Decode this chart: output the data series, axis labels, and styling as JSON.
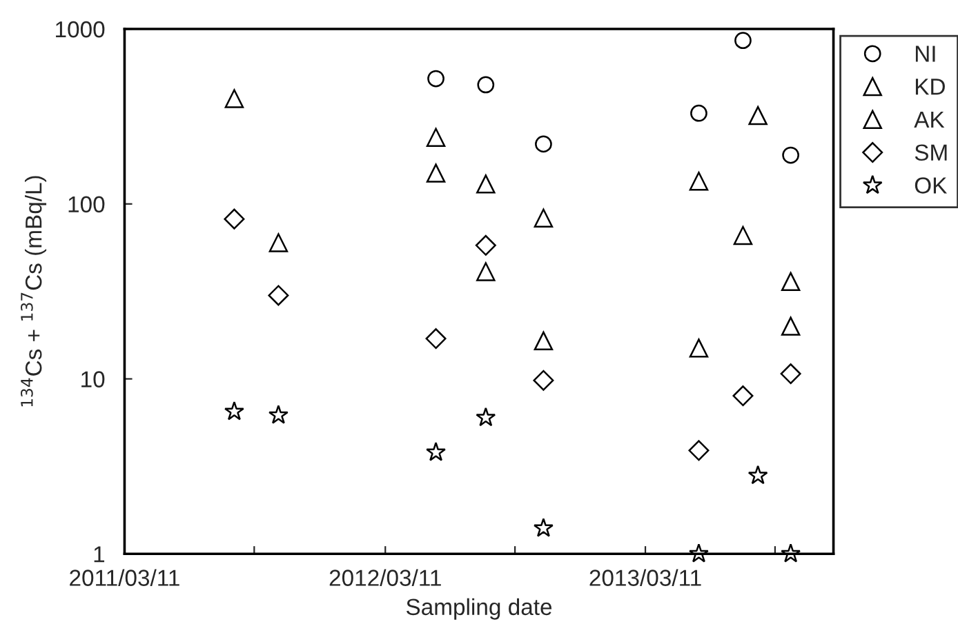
{
  "chart_data": {
    "type": "scatter",
    "xlabel": "Sampling date",
    "ylabel": "$^{134}$Cs + $^{137}$Cs (mBq/L)",
    "log": "y",
    "grid": false,
    "legend": "top right",
    "xlim": [
      "2011-03-11",
      "2013-11-30"
    ],
    "xticks": [
      {
        "value": "2011-03-11",
        "label": "2011/03/11"
      },
      {
        "value": "2011-09-09",
        "label": null
      },
      {
        "value": "2012-03-11",
        "label": "2012/03/11"
      },
      {
        "value": "2012-09-09",
        "label": null
      },
      {
        "value": "2013-03-11",
        "label": "2013/03/11"
      },
      {
        "value": "2013-09-09",
        "label": null
      }
    ],
    "ylim": [
      1,
      1000
    ],
    "yticks": [
      1,
      10,
      100,
      1000
    ],
    "series": [
      {
        "name": "NI",
        "color": "#000000",
        "marker": "circle",
        "x": [
          "2012-05-21",
          "2012-07-30",
          "2012-10-19",
          "2013-05-25",
          "2013-07-26",
          "2013-10-01"
        ],
        "values": [
          520,
          480,
          220,
          330,
          860,
          190
        ]
      },
      {
        "name": "KD",
        "color": "#000000",
        "marker": "triangle",
        "x": [
          "2011-08-12",
          "2011-10-13",
          "2012-05-21",
          "2012-07-30",
          "2012-10-19",
          "2013-05-25",
          "2013-08-16",
          "2013-10-01"
        ],
        "values": [
          400,
          60,
          240,
          130,
          83,
          135,
          320,
          36
        ]
      },
      {
        "name": "AK",
        "color": "#000000",
        "marker": "triangle",
        "x": [
          "2012-05-21",
          "2012-07-30",
          "2012-10-19",
          "2013-05-25",
          "2013-07-26",
          "2013-10-01"
        ],
        "values": [
          150,
          41,
          16.5,
          15,
          66,
          20
        ]
      },
      {
        "name": "SM",
        "color": "#000000",
        "marker": "diamond",
        "x": [
          "2011-08-12",
          "2011-10-13",
          "2012-05-21",
          "2012-07-30",
          "2012-10-19",
          "2013-05-25",
          "2013-07-26",
          "2013-10-01"
        ],
        "values": [
          82,
          30,
          17,
          58,
          9.8,
          3.9,
          8,
          10.7
        ]
      },
      {
        "name": "OK",
        "color": "#000000",
        "marker": "star",
        "x": [
          "2011-08-12",
          "2011-10-13",
          "2012-05-21",
          "2012-07-30",
          "2012-10-19",
          "2013-05-25",
          "2013-08-16",
          "2013-10-01"
        ],
        "values": [
          6.5,
          6.2,
          3.8,
          6.0,
          1.4,
          1.0,
          2.8,
          1.0
        ]
      }
    ]
  }
}
